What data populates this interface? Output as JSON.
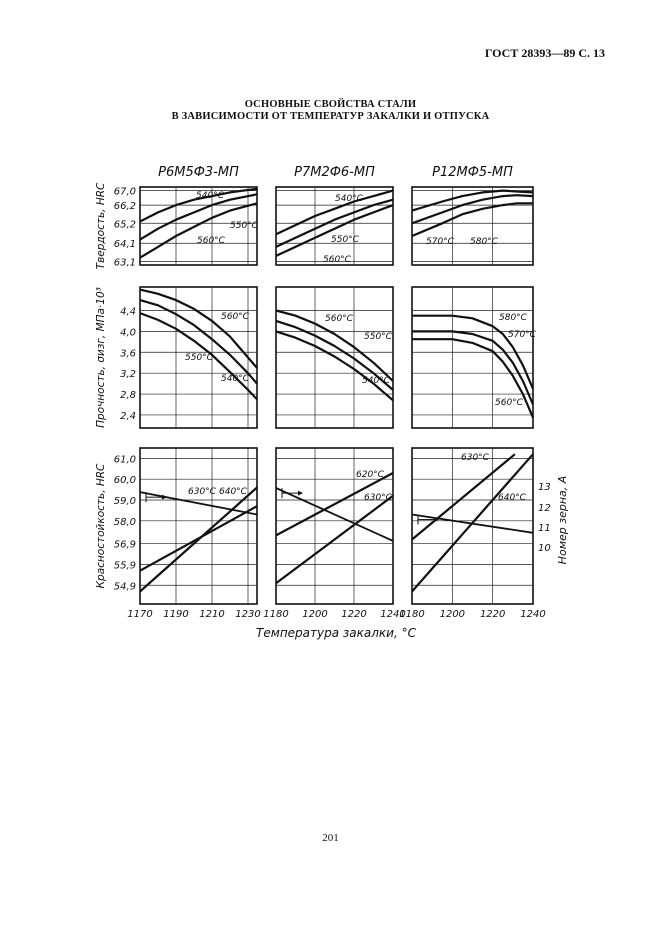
{
  "header": "ГОСТ 28393—89 С. 13",
  "title_line1": "ОСНОВНЫЕ СВОЙСТВА СТАЛИ",
  "title_line2": "В ЗАВИСИМОСТИ ОТ ТЕМПЕРАТУР ЗАКАЛКИ И ОТПУСКА",
  "page_number": "201",
  "chart_data": {
    "type": "line",
    "grades": [
      "Р6М5Ф3-МП",
      "Р7М2Ф6-МП",
      "Р12МФ5-МП"
    ],
    "xlabel": "Температура закалки, °С",
    "x_ticks": [
      [
        "1170",
        "1190",
        "1210",
        "1230"
      ],
      [
        "1180",
        "1200",
        "1220",
        "1240"
      ],
      [
        "1180",
        "1200",
        "1220",
        "1240"
      ]
    ],
    "x_ranges": [
      [
        1170,
        1235
      ],
      [
        1180,
        1240
      ],
      [
        1180,
        1240
      ]
    ],
    "rows": [
      {
        "ylabel": "Твердость, HRC",
        "y_ticks": [
          "67,0",
          "66,2",
          "65,2",
          "64,1",
          "63,1"
        ],
        "y_tick_values": [
          67.0,
          66.2,
          65.2,
          64.1,
          63.1
        ],
        "panels": [
          {
            "series": [
              {
                "label": "540°С",
                "x": [
                  1170,
                  1180,
                  1190,
                  1200,
                  1210,
                  1220,
                  1235
                ],
                "y": [
                  65.3,
                  65.8,
                  66.2,
                  66.5,
                  66.7,
                  66.9,
                  67.1
                ]
              },
              {
                "label": "550°С",
                "x": [
                  1170,
                  1180,
                  1190,
                  1200,
                  1210,
                  1220,
                  1235
                ],
                "y": [
                  64.3,
                  64.9,
                  65.4,
                  65.8,
                  66.2,
                  66.5,
                  66.8
                ]
              },
              {
                "label": "560°С",
                "x": [
                  1170,
                  1180,
                  1190,
                  1200,
                  1210,
                  1220,
                  1235
                ],
                "y": [
                  63.3,
                  63.9,
                  64.5,
                  65.0,
                  65.5,
                  65.9,
                  66.3
                ]
              }
            ]
          },
          {
            "series": [
              {
                "label": "540°С",
                "x": [
                  1180,
                  1190,
                  1200,
                  1210,
                  1220,
                  1230,
                  1240
                ],
                "y": [
                  64.6,
                  65.1,
                  65.6,
                  66.0,
                  66.4,
                  66.7,
                  67.0
                ]
              },
              {
                "label": "550°С",
                "x": [
                  1180,
                  1190,
                  1200,
                  1210,
                  1220,
                  1230,
                  1240
                ],
                "y": [
                  63.9,
                  64.4,
                  64.9,
                  65.4,
                  65.8,
                  66.2,
                  66.5
                ]
              },
              {
                "label": "560°С",
                "x": [
                  1180,
                  1190,
                  1200,
                  1210,
                  1220,
                  1230,
                  1240
                ],
                "y": [
                  63.4,
                  63.9,
                  64.4,
                  64.9,
                  65.4,
                  65.8,
                  66.2
                ]
              }
            ]
          },
          {
            "series": [
              {
                "label": "",
                "x": [
                  1180,
                  1195,
                  1205,
                  1215,
                  1225,
                  1232,
                  1240
                ],
                "y": [
                  65.9,
                  66.4,
                  66.7,
                  66.9,
                  67.0,
                  66.95,
                  66.9
                ]
              },
              {
                "label": "570°С",
                "x": [
                  1180,
                  1195,
                  1205,
                  1215,
                  1225,
                  1232,
                  1240
                ],
                "y": [
                  65.2,
                  65.8,
                  66.2,
                  66.5,
                  66.7,
                  66.75,
                  66.7
                ]
              },
              {
                "label": "580°С",
                "x": [
                  1180,
                  1195,
                  1205,
                  1215,
                  1225,
                  1232,
                  1240
                ],
                "y": [
                  64.5,
                  65.2,
                  65.7,
                  66.0,
                  66.2,
                  66.3,
                  66.3
                ]
              }
            ]
          }
        ]
      },
      {
        "ylabel": "Прочность, σизг, МПа·10³",
        "y_ticks": [
          "4,4",
          "4,0",
          "3,6",
          "3,2",
          "2,8",
          "2,4"
        ],
        "y_tick_values": [
          4.4,
          4.0,
          3.6,
          3.2,
          2.8,
          2.4
        ],
        "panels": [
          {
            "series": [
              {
                "label": "560°С",
                "x": [
                  1170,
                  1180,
                  1190,
                  1200,
                  1210,
                  1220,
                  1230,
                  1235
                ],
                "y": [
                  4.8,
                  4.72,
                  4.6,
                  4.43,
                  4.2,
                  3.9,
                  3.5,
                  3.3
                ]
              },
              {
                "label": "550°С",
                "x": [
                  1170,
                  1180,
                  1190,
                  1200,
                  1210,
                  1220,
                  1230,
                  1235
                ],
                "y": [
                  4.6,
                  4.5,
                  4.33,
                  4.12,
                  3.85,
                  3.55,
                  3.2,
                  3.0
                ]
              },
              {
                "label": "540°С",
                "x": [
                  1170,
                  1180,
                  1190,
                  1200,
                  1210,
                  1220,
                  1230,
                  1235
                ],
                "y": [
                  4.35,
                  4.22,
                  4.05,
                  3.82,
                  3.55,
                  3.22,
                  2.88,
                  2.7
                ]
              }
            ]
          },
          {
            "series": [
              {
                "label": "560°С",
                "x": [
                  1180,
                  1190,
                  1200,
                  1210,
                  1220,
                  1230,
                  1240
                ],
                "y": [
                  4.4,
                  4.3,
                  4.15,
                  3.95,
                  3.7,
                  3.4,
                  3.05
                ]
              },
              {
                "label": "550°С",
                "x": [
                  1180,
                  1190,
                  1200,
                  1210,
                  1220,
                  1230,
                  1240
                ],
                "y": [
                  4.2,
                  4.08,
                  3.92,
                  3.72,
                  3.48,
                  3.2,
                  2.88
                ]
              },
              {
                "label": "540°С",
                "x": [
                  1180,
                  1190,
                  1200,
                  1210,
                  1220,
                  1230,
                  1240
                ],
                "y": [
                  4.0,
                  3.88,
                  3.72,
                  3.52,
                  3.28,
                  3.0,
                  2.68
                ]
              }
            ]
          },
          {
            "series": [
              {
                "label": "580°С",
                "x": [
                  1180,
                  1200,
                  1210,
                  1220,
                  1225,
                  1230,
                  1235,
                  1240
                ],
                "y": [
                  4.3,
                  4.3,
                  4.25,
                  4.1,
                  3.95,
                  3.7,
                  3.35,
                  2.9
                ]
              },
              {
                "label": "570°С",
                "x": [
                  1180,
                  1200,
                  1210,
                  1220,
                  1225,
                  1230,
                  1235,
                  1240
                ],
                "y": [
                  4.0,
                  4.0,
                  3.95,
                  3.82,
                  3.65,
                  3.4,
                  3.05,
                  2.6
                ]
              },
              {
                "label": "560°С",
                "x": [
                  1180,
                  1200,
                  1210,
                  1220,
                  1225,
                  1230,
                  1235,
                  1240
                ],
                "y": [
                  3.85,
                  3.85,
                  3.78,
                  3.62,
                  3.42,
                  3.15,
                  2.8,
                  2.35
                ]
              }
            ]
          }
        ]
      },
      {
        "ylabel": "Красностойкость, HRC",
        "y_ticks": [
          "61,0",
          "60,0",
          "59,0",
          "58,0",
          "56,9",
          "55,9",
          "54,9"
        ],
        "y_tick_values": [
          61.0,
          60.0,
          59.0,
          58.0,
          56.9,
          55.9,
          54.9
        ],
        "right_ylabel": "Номер зерна, А",
        "right_ticks": [
          "13",
          "12",
          "11",
          "10"
        ],
        "right_tick_values": [
          13,
          12,
          11,
          10
        ],
        "panels": [
          {
            "series": [
              {
                "label": "630°С",
                "x": [
                  1170,
                  1235
                ],
                "y": [
                  55.6,
                  58.7
                ]
              },
              {
                "label": "640°С",
                "x": [
                  1170,
                  1235
                ],
                "y": [
                  54.6,
                  59.6
                ]
              },
              {
                "label": "",
                "axis": "right",
                "x": [
                  1170,
                  1235
                ],
                "y": [
                  12.7,
                  11.6
                ]
              }
            ]
          },
          {
            "series": [
              {
                "label": "620°С",
                "x": [
                  1180,
                  1240
                ],
                "y": [
                  57.3,
                  60.3
                ]
              },
              {
                "label": "630°С",
                "x": [
                  1180,
                  1240
                ],
                "y": [
                  55.0,
                  59.2
                ]
              },
              {
                "label": "",
                "axis": "right",
                "x": [
                  1180,
                  1240
                ],
                "y": [
                  12.9,
                  10.3
                ]
              }
            ]
          },
          {
            "series": [
              {
                "label": "630°С",
                "x": [
                  1180,
                  1231
                ],
                "y": [
                  57.1,
                  61.2
                ]
              },
              {
                "label": "640°С",
                "x": [
                  1180,
                  1240
                ],
                "y": [
                  54.6,
                  61.2
                ]
              },
              {
                "label": "",
                "axis": "right",
                "x": [
                  1180,
                  1240
                ],
                "y": [
                  11.6,
                  10.7
                ]
              }
            ]
          }
        ]
      }
    ]
  }
}
